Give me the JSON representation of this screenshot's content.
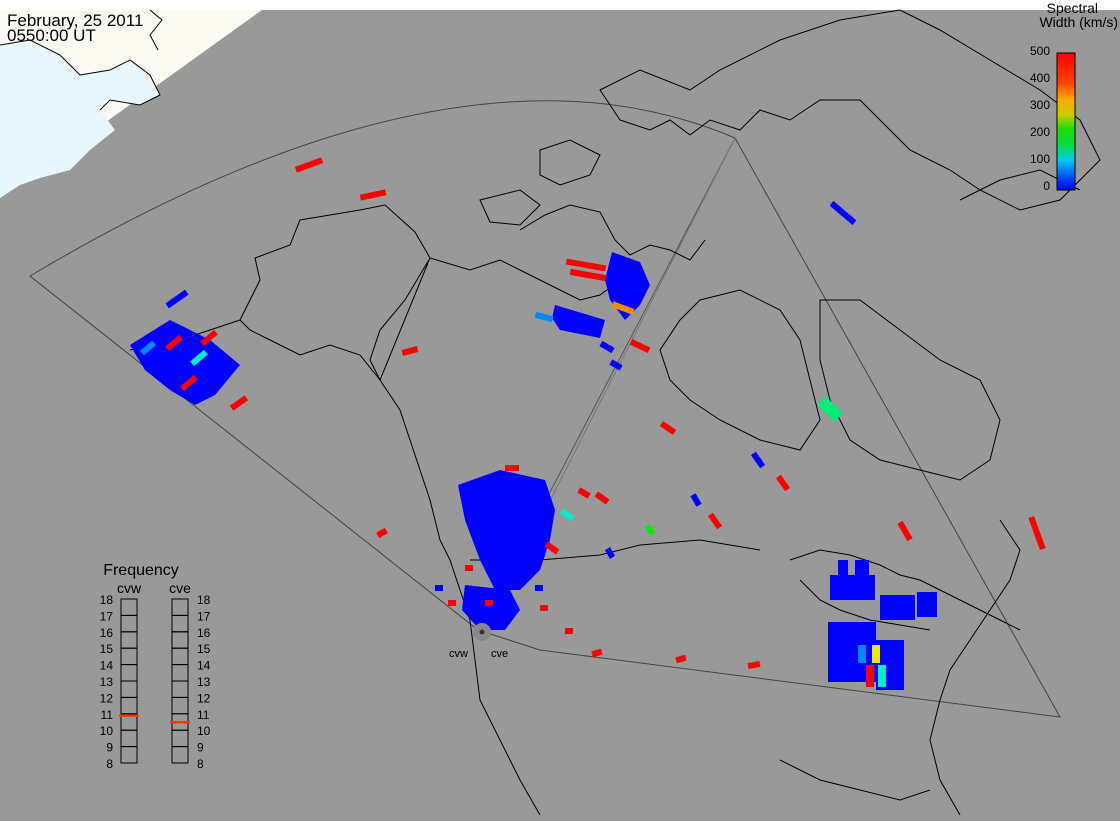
{
  "header": {
    "date": "February, 25 2011",
    "time": "0550:00 UT"
  },
  "colorbar": {
    "title_line1": "Spectral",
    "title_line2": "Width (km/s)",
    "ticks": [
      "500",
      "400",
      "300",
      "200",
      "100",
      "0"
    ],
    "stops": [
      "#ff0000",
      "#ff3000",
      "#ffaa00",
      "#e8e800",
      "#00dd00",
      "#00eecc",
      "#0088ff",
      "#0000ff"
    ]
  },
  "frequency_panel": {
    "title": "Frequency",
    "radars": [
      {
        "name": "cvw",
        "value_mhz": 10.9
      },
      {
        "name": "cve",
        "value_mhz": 10.5
      }
    ],
    "scale": [
      "18",
      "17",
      "16",
      "15",
      "14",
      "13",
      "12",
      "11",
      "10",
      "9",
      "8"
    ]
  },
  "radar_sites": [
    "cvw",
    "cve"
  ],
  "colors": {
    "background": "#999999",
    "night_shade": "#fbfbf1",
    "ice": "#e8f6fd",
    "frequency_marker": "#ff3300",
    "scatter_low": "#0000ff",
    "scatter_high": "#ff0000"
  }
}
